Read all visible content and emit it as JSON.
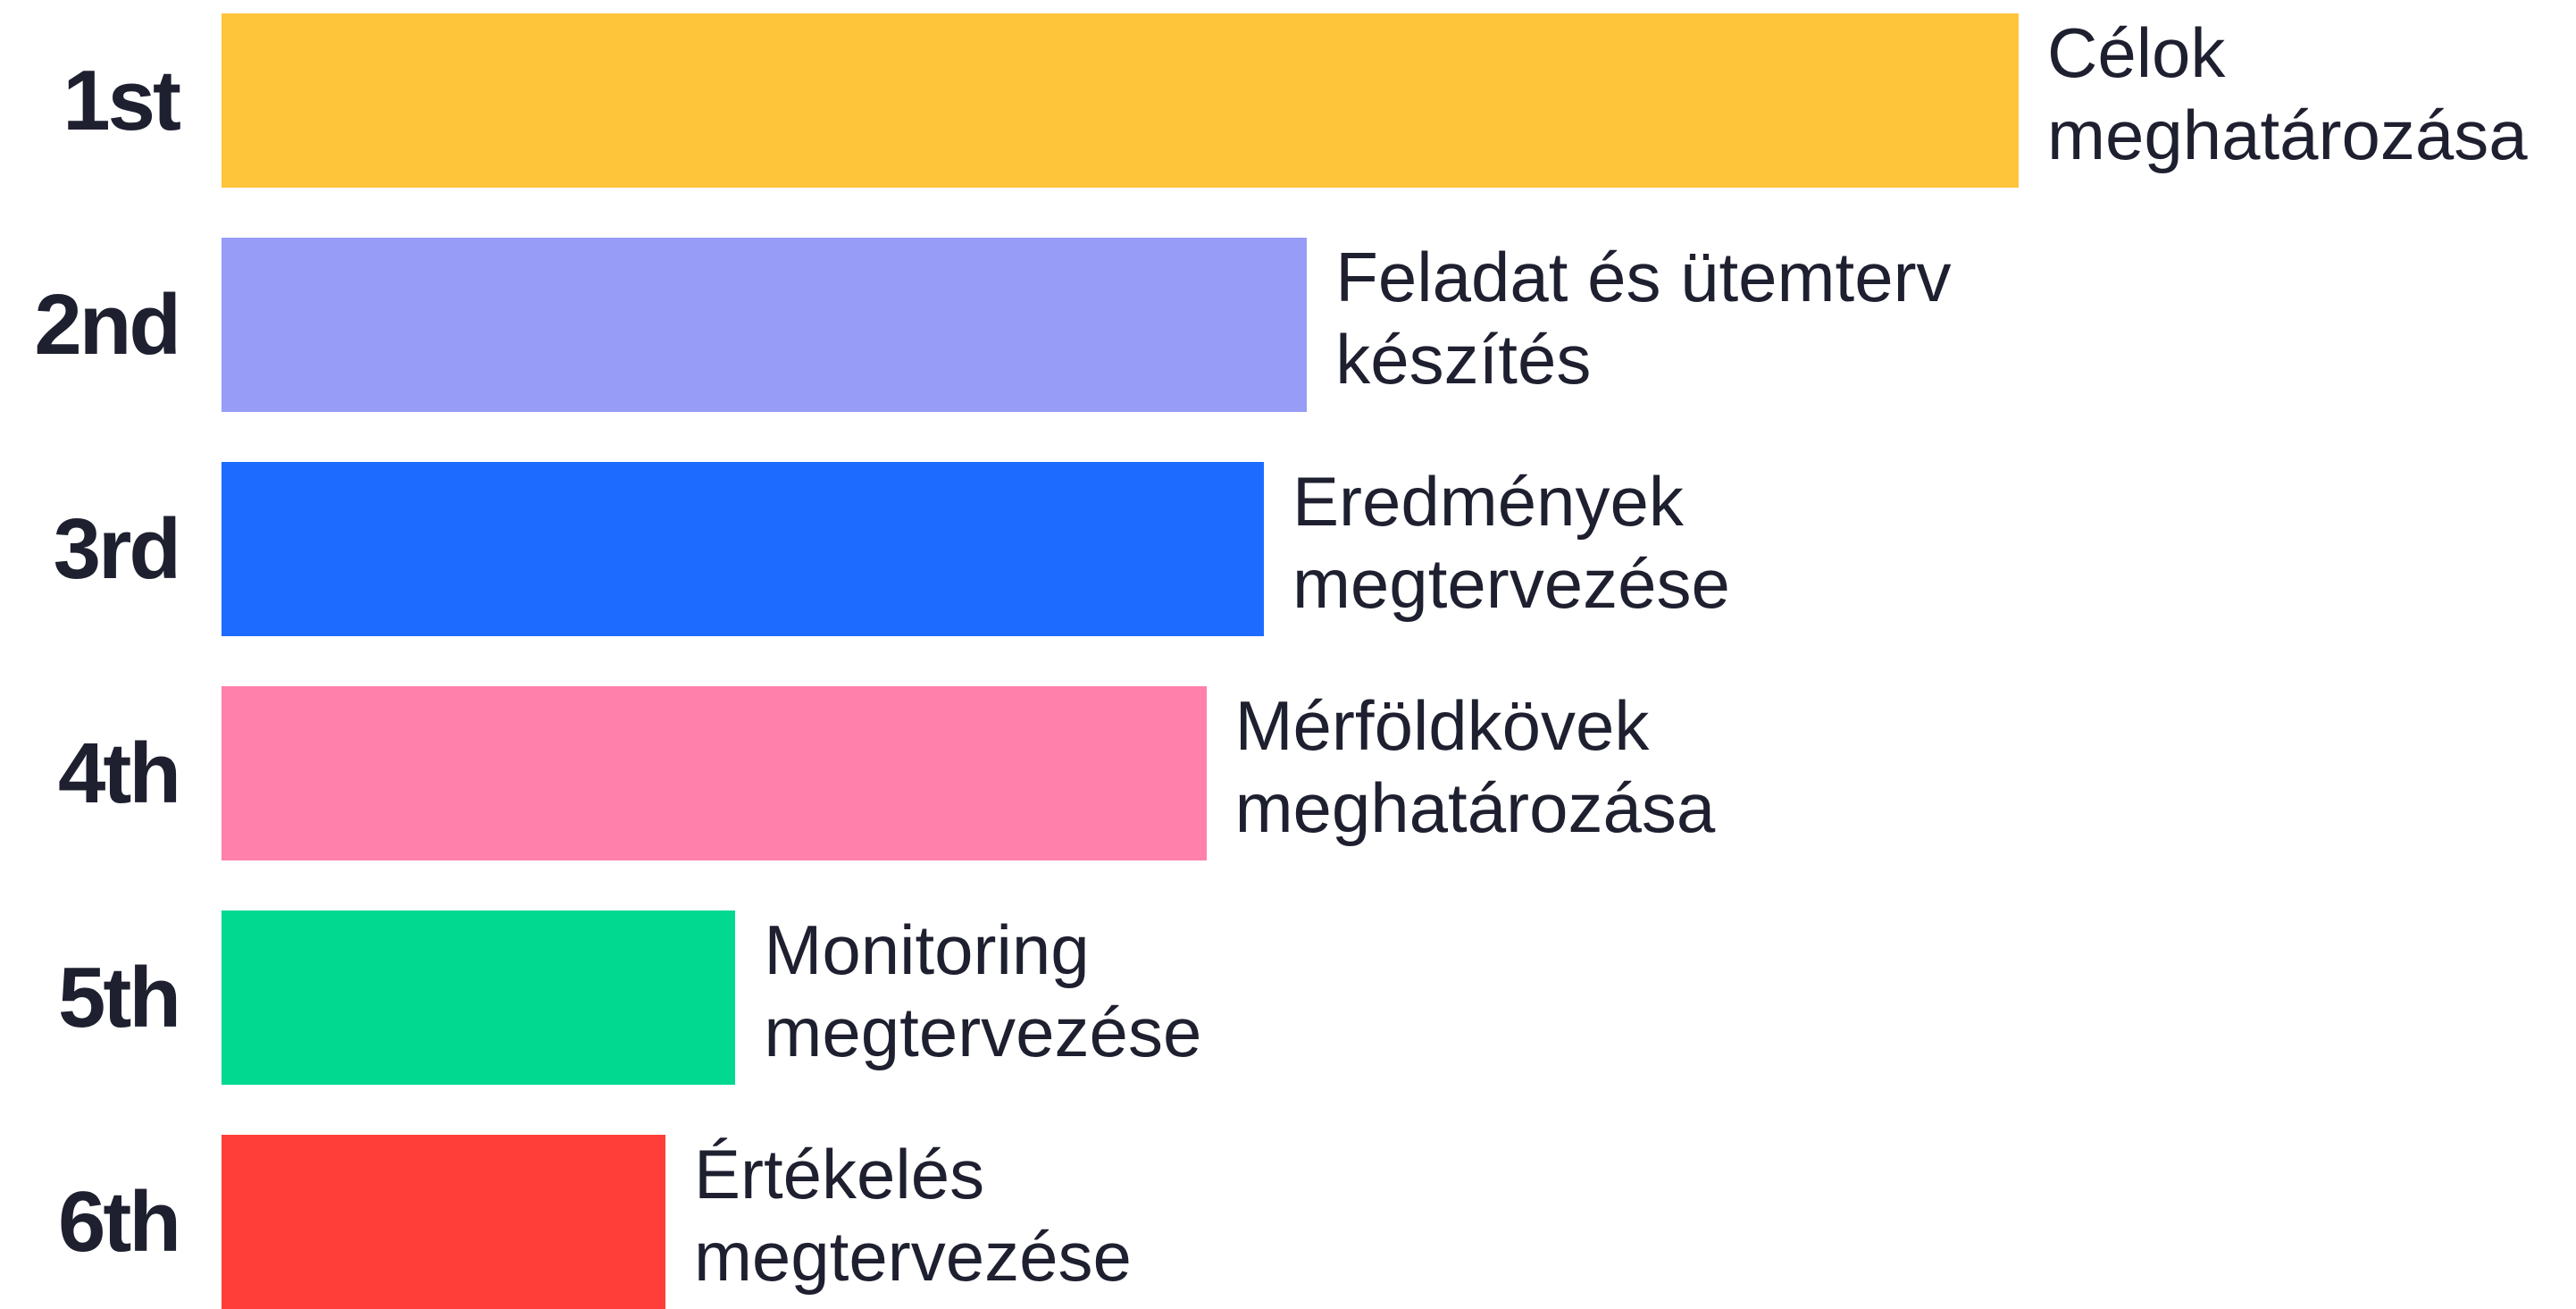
{
  "chart_data": {
    "type": "bar",
    "orientation": "horizontal",
    "categories": [
      "1st",
      "2nd",
      "3rd",
      "4th",
      "5th",
      "6th"
    ],
    "labels": [
      "Célok\nmeghatározása",
      "Feladat és ütemterv\nkészítés",
      "Eredmények\nmegtervezése",
      "Mérföldkövek\nmeghatározása",
      "Monitoring\nmegtervezése",
      "Értékelés\nmegtervezése"
    ],
    "values": [
      100,
      60.4,
      58,
      54.8,
      28.6,
      24.7
    ],
    "colors": [
      "#fec43a",
      "#979cf6",
      "#1e6bff",
      "#ff80ab",
      "#00d98f",
      "#ff3e3a"
    ],
    "xlim": [
      0,
      100
    ]
  }
}
